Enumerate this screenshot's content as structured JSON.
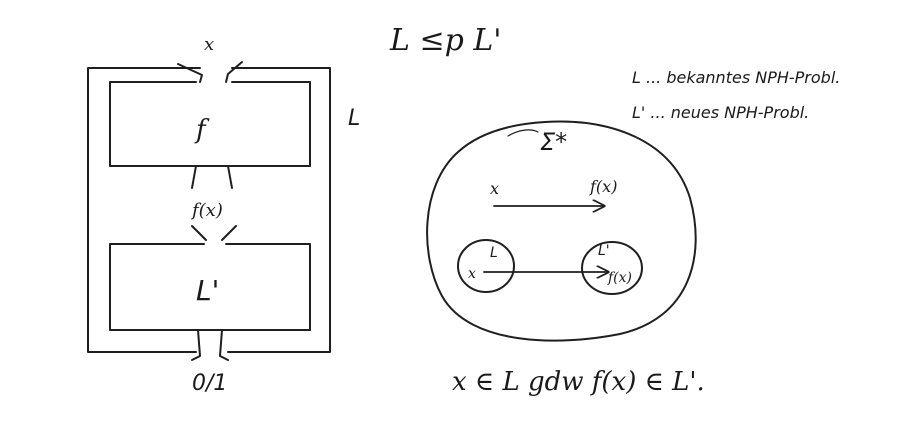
{
  "heading": "L ≤p L'",
  "notes": {
    "line1": "L ... bekanntes NPH-Probl.",
    "line2": "L' ... neues NPH-Probl."
  },
  "machine": {
    "input": "x",
    "outer_label": "L",
    "box_f": "f",
    "intermediate": "f(x)",
    "box_lprime": "L'",
    "output": "0/1"
  },
  "universe": {
    "label": "Σ*",
    "mapping_from": "x",
    "mapping_to": "f(x)",
    "set_l": "L",
    "set_l_elem": "x",
    "set_lprime": "L'",
    "set_lprime_elem": "f(x)"
  },
  "statement": "x ∈ L gdw f(x) ∈ L'."
}
